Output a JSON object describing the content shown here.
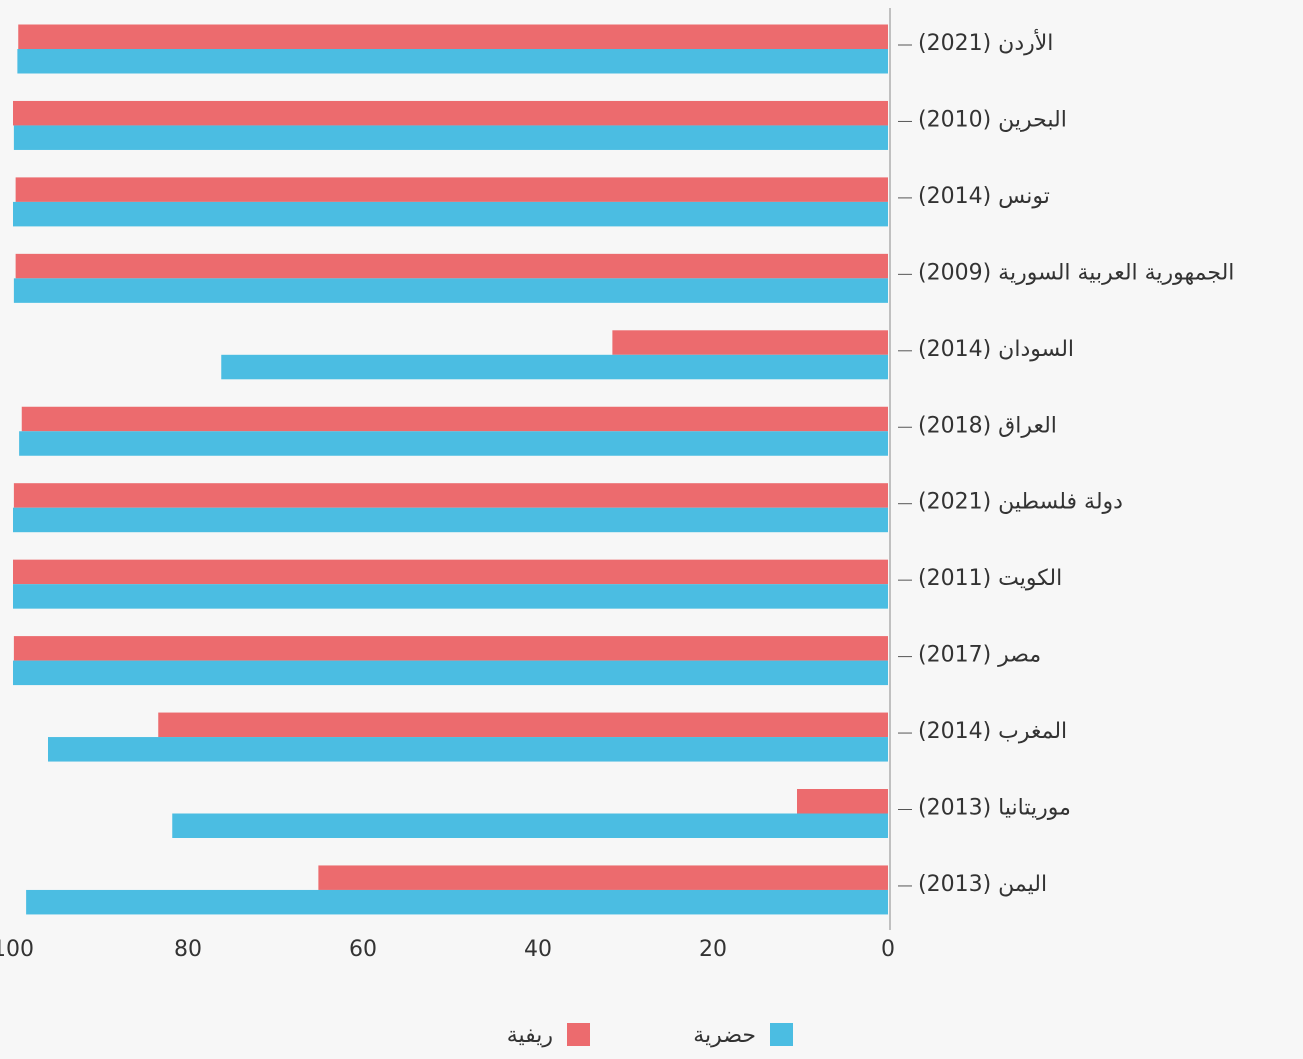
{
  "chart_data": {
    "type": "barh",
    "categories": [
      "الأردن (2021)",
      "البحرين (2010)",
      "تونس (2014)",
      "الجمهورية العربية السورية (2009)",
      "السودان (2014)",
      "العراق (2018)",
      "دولة فلسطين (2021)",
      "الكويت (2011)",
      "مصر (2017)",
      "المغرب (2014)",
      "موريتانيا (2013)",
      "اليمن (2013)"
    ],
    "series": [
      {
        "name": "ريفية",
        "color": "#ec6b6e",
        "values": [
          99.4,
          100,
          99.7,
          99.7,
          31.5,
          99.0,
          99.9,
          100,
          99.9,
          83.4,
          10.4,
          65.1
        ]
      },
      {
        "name": "حضرية",
        "color": "#4bbde2",
        "values": [
          99.5,
          99.9,
          100,
          99.9,
          76.2,
          99.3,
          100,
          100,
          100,
          96.0,
          81.8,
          98.5
        ]
      }
    ],
    "xlim": [
      0,
      100
    ],
    "xticks": [
      0,
      20,
      40,
      60,
      80,
      100
    ],
    "x_reversed": true
  }
}
